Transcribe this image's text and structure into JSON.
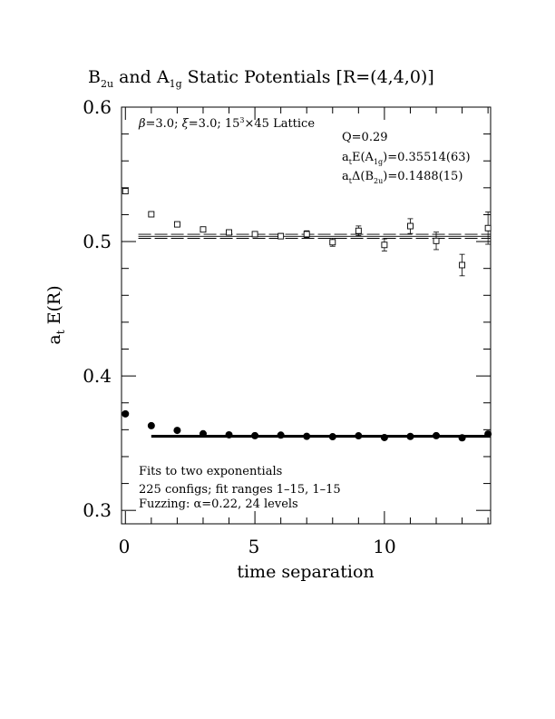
{
  "chart_data": {
    "type": "scatter",
    "title_parts": {
      "p1": "B",
      "p1_sub": "2u",
      "p2": " and A",
      "p2_sub": "1g",
      "p3": " Static Potentials [R=(4,4,0)]"
    },
    "xlabel": "time separation",
    "ylabel": {
      "main": "a",
      "sub": "t",
      "rest": " E(R)"
    },
    "xlim": [
      -0.15,
      14.1
    ],
    "ylim": [
      0.29,
      0.6
    ],
    "x_ticks": [
      0,
      5,
      10
    ],
    "y_ticks": [
      "0.3",
      "0.4",
      "0.5",
      "0.6"
    ],
    "annotations": {
      "lattice": {
        "beta": "β",
        "a": "=3.0; ",
        "xi": "ξ",
        "b": "=3.0; 15",
        "sup": "3",
        "c": "×45 Lattice"
      },
      "q": "Q=0.29",
      "e_a1g": {
        "a": "a",
        "a_sub": "t",
        "b": "E(A",
        "b_sub": "1g",
        "c": ")=0.35514(63)"
      },
      "d_b2u": {
        "a": "a",
        "a_sub": "t",
        "b": "Δ(B",
        "b_sub": "2u",
        "c": ")=0.1488(15)"
      },
      "fits_line1": "Fits to two exponentials",
      "fits_line2": "225 configs; fit ranges 1–15, 1–15",
      "fits_line3": "Fuzzing: α=0.22, 24 levels"
    },
    "series": [
      {
        "marker": "open-square",
        "points": [
          {
            "x": 0,
            "y": 0.5375,
            "err": 0.0008
          },
          {
            "x": 1,
            "y": 0.5203,
            "err": 0.0009
          },
          {
            "x": 2,
            "y": 0.5128,
            "err": 0.0011
          },
          {
            "x": 3,
            "y": 0.509,
            "err": 0.0013
          },
          {
            "x": 4,
            "y": 0.5068,
            "err": 0.0015
          },
          {
            "x": 5,
            "y": 0.5055,
            "err": 0.0017
          },
          {
            "x": 6,
            "y": 0.504,
            "err": 0.002
          },
          {
            "x": 7,
            "y": 0.5055,
            "err": 0.0025
          },
          {
            "x": 8,
            "y": 0.4995,
            "err": 0.003
          },
          {
            "x": 9,
            "y": 0.508,
            "err": 0.0036
          },
          {
            "x": 10,
            "y": 0.4975,
            "err": 0.0045
          },
          {
            "x": 11,
            "y": 0.5115,
            "err": 0.0055
          },
          {
            "x": 12,
            "y": 0.5005,
            "err": 0.0065
          },
          {
            "x": 13,
            "y": 0.4825,
            "err": 0.008
          },
          {
            "x": 14,
            "y": 0.51,
            "err": 0.012
          }
        ]
      },
      {
        "marker": "filled-circle",
        "points": [
          {
            "x": 0,
            "y": 0.3718
          },
          {
            "x": 1,
            "y": 0.363
          },
          {
            "x": 2,
            "y": 0.3595
          },
          {
            "x": 3,
            "y": 0.357
          },
          {
            "x": 4,
            "y": 0.3562
          },
          {
            "x": 5,
            "y": 0.3556
          },
          {
            "x": 6,
            "y": 0.356
          },
          {
            "x": 7,
            "y": 0.3551
          },
          {
            "x": 8,
            "y": 0.3548
          },
          {
            "x": 9,
            "y": 0.3555
          },
          {
            "x": 10,
            "y": 0.3542
          },
          {
            "x": 11,
            "y": 0.355
          },
          {
            "x": 12,
            "y": 0.3556
          },
          {
            "x": 13,
            "y": 0.354
          },
          {
            "x": 14,
            "y": 0.3568
          }
        ]
      }
    ],
    "fit_bands": [
      {
        "x_start": 0.5,
        "x_end": 14.1,
        "center": 0.5039,
        "err": 0.0015,
        "style": "thin"
      },
      {
        "x_start": 1.0,
        "x_end": 14.1,
        "center": 0.35514,
        "err": 0.00063,
        "style": "thick"
      }
    ]
  }
}
